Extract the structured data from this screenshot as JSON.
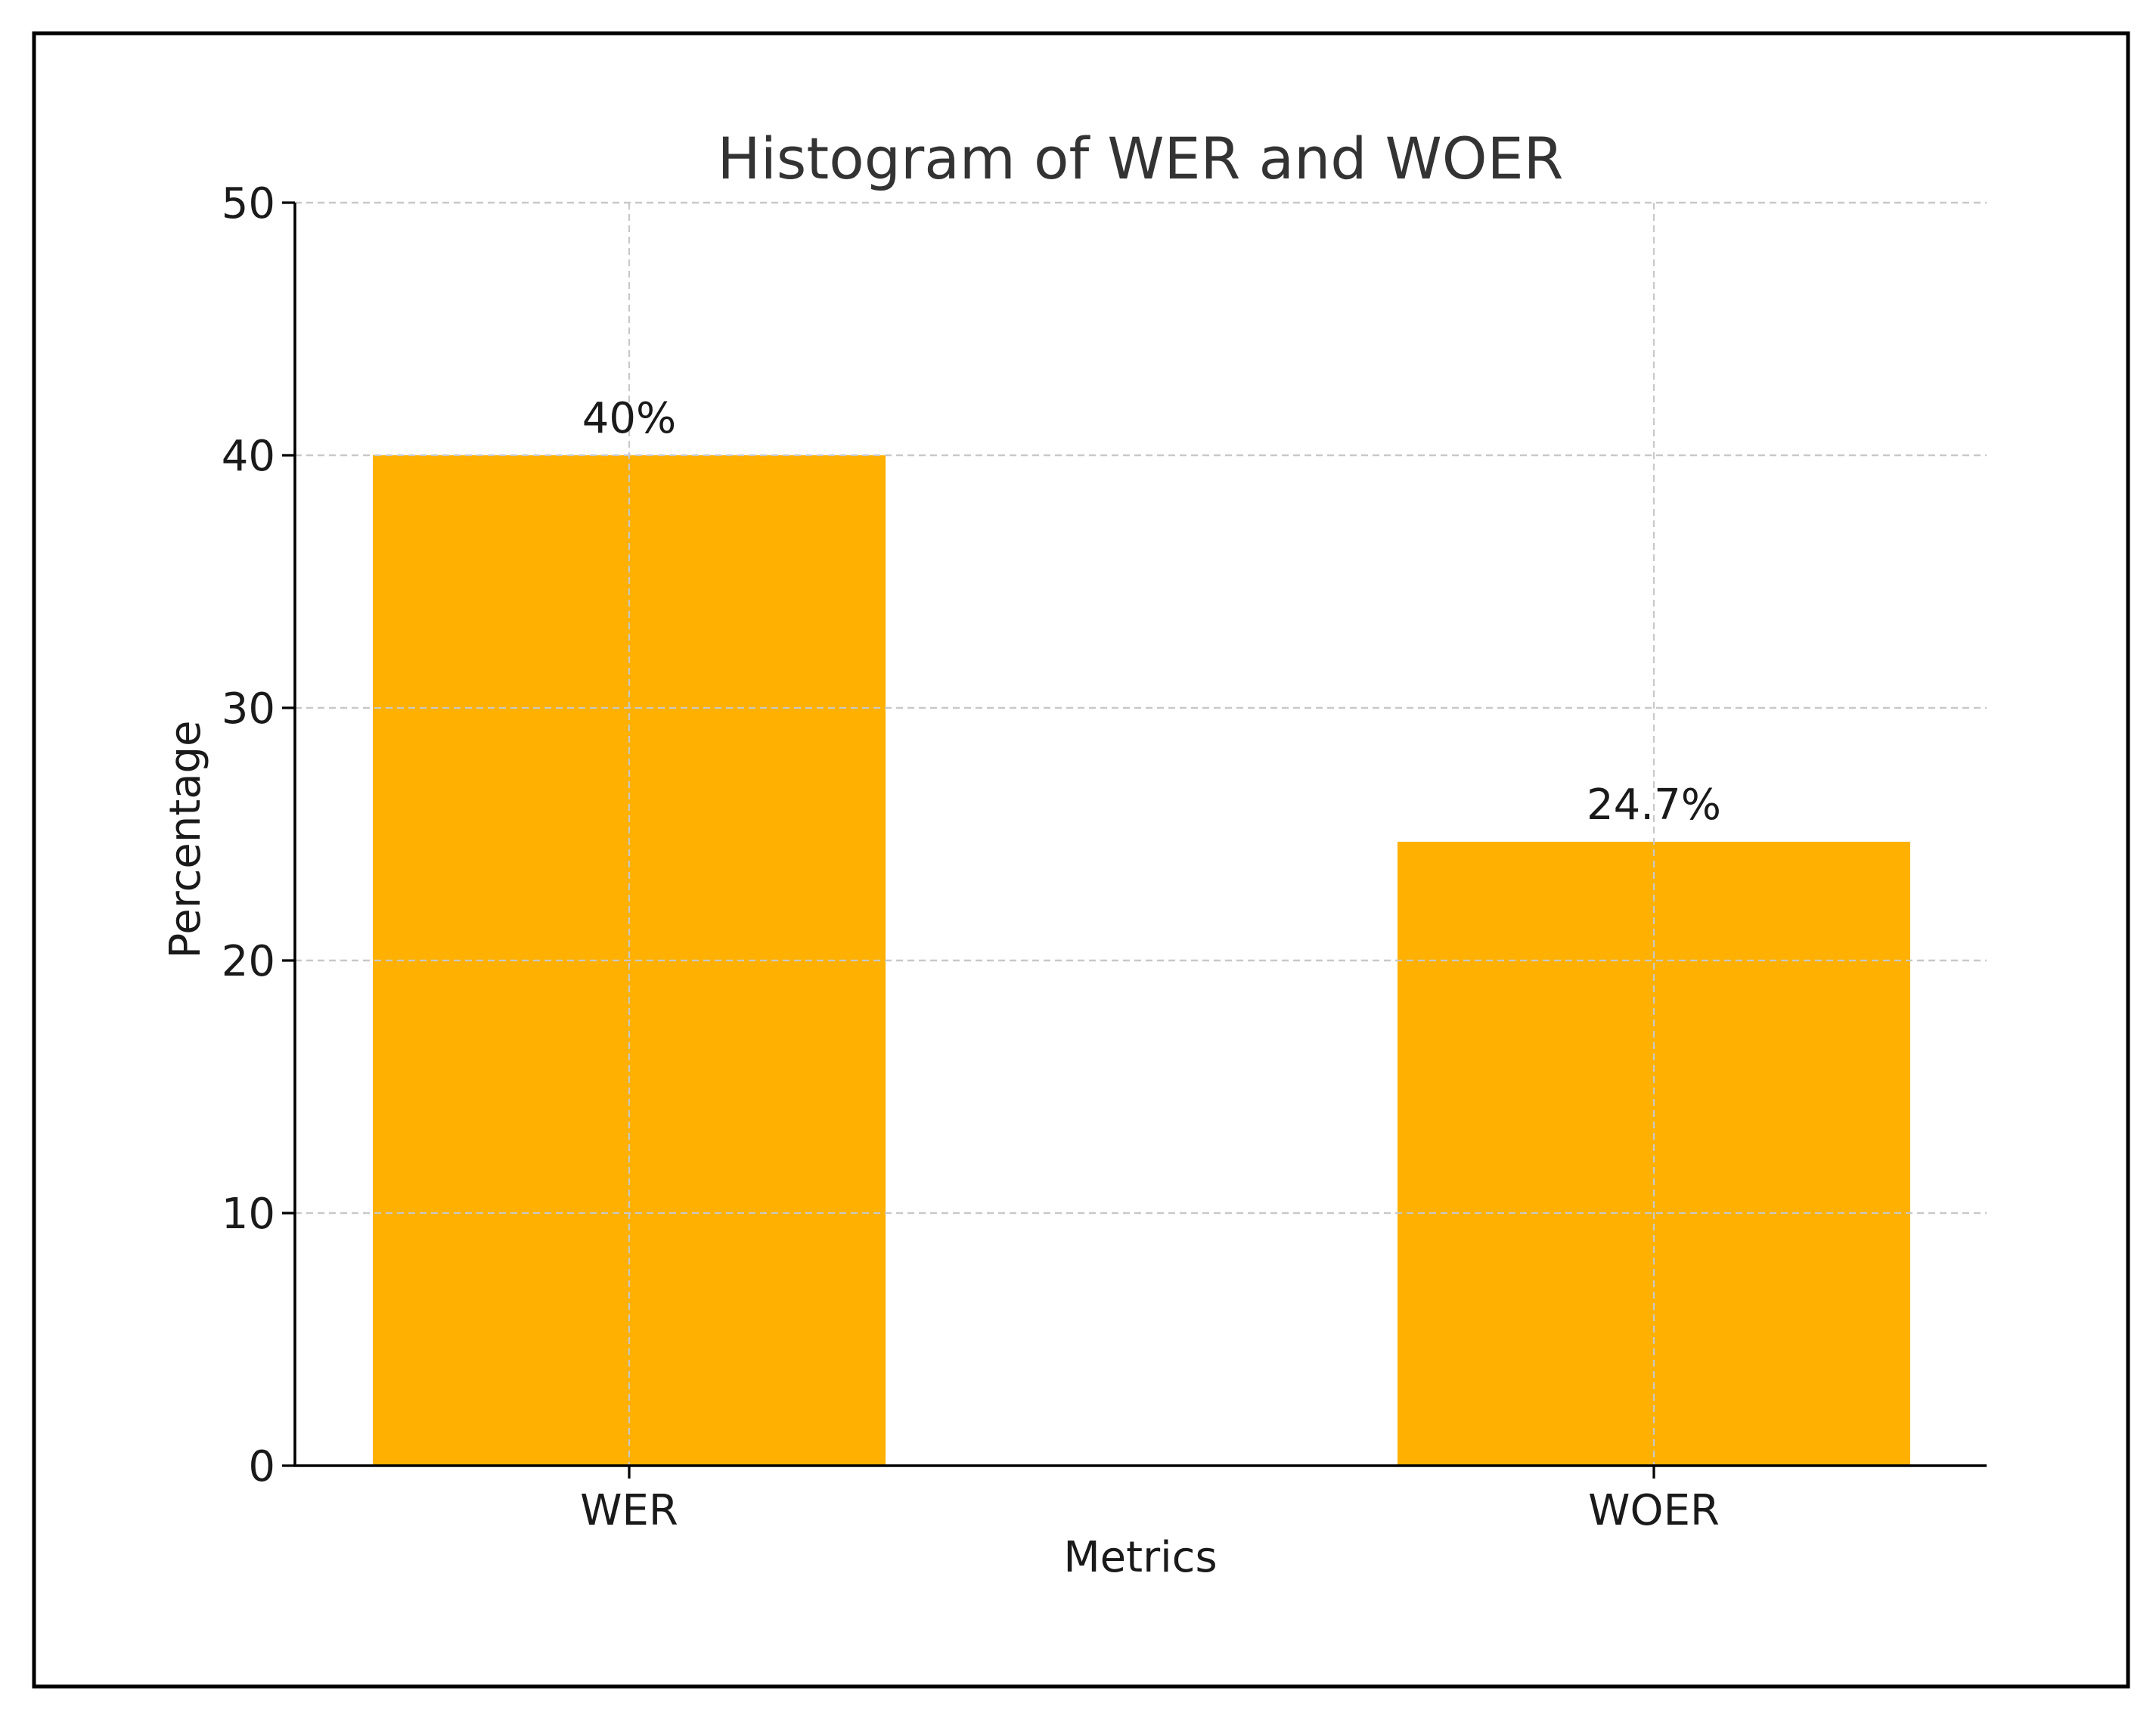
{
  "chart_data": {
    "type": "bar",
    "title": "Histogram of WER and WOER",
    "xlabel": "Metrics",
    "ylabel": "Percentage",
    "categories": [
      "WER",
      "WOER"
    ],
    "values": [
      40,
      24.7
    ],
    "data_labels": [
      "40%",
      "24.7%"
    ],
    "ylim": [
      0,
      50
    ],
    "yticks": [
      0,
      10,
      20,
      30,
      40,
      50
    ],
    "ytick_labels": [
      "0",
      "10",
      "20",
      "30",
      "40",
      "50"
    ],
    "grid": true,
    "bar_color": "#ffb000",
    "legend": "none"
  }
}
